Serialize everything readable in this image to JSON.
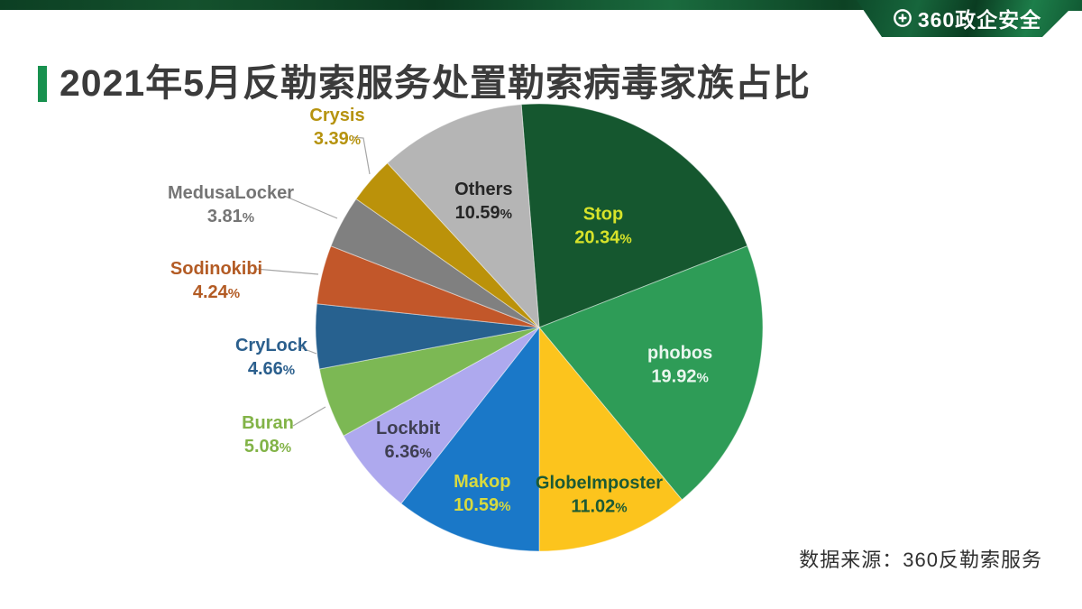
{
  "header": {
    "logo_text": "360政企安全",
    "title": "2021年5月反勒索服务处置勒索病毒家族占比"
  },
  "footer": {
    "source_note": "数据来源：360反勒索服务"
  },
  "colors": {
    "accent_green": "#18914f",
    "banner_green_dark": "#0a3c21",
    "banner_green_light": "#1d7e4a",
    "title_text": "#3b3b3b",
    "leader_line": "#a6a6a6"
  },
  "chart_data": {
    "type": "pie",
    "title": "2021年5月反勒索服务处置勒索病毒家族占比",
    "unit": "percent",
    "legend": "none",
    "start_angle_deg": -4.6,
    "clockwise": true,
    "slices": [
      {
        "name": "Stop",
        "value": 20.34,
        "label": "20.34%",
        "color": "#15572f",
        "label_color": "#d7e32a",
        "label_placement": "inside"
      },
      {
        "name": "phobos",
        "value": 19.92,
        "label": "19.92%",
        "color": "#2e9c57",
        "label_color": "#e9f6ee",
        "label_placement": "inside"
      },
      {
        "name": "GlobeImposter",
        "value": 11.02,
        "label": "11.02%",
        "color": "#fcc41d",
        "label_color": "#1c5a34",
        "label_placement": "inside"
      },
      {
        "name": "Makop",
        "value": 10.59,
        "label": "10.59%",
        "color": "#1a78c8",
        "label_color": "#d8da3f",
        "label_placement": "inside"
      },
      {
        "name": "Lockbit",
        "value": 6.36,
        "label": "6.36%",
        "color": "#aea9ee",
        "label_color": "#3f3f52",
        "label_placement": "inside"
      },
      {
        "name": "Buran",
        "value": 5.08,
        "label": "5.08%",
        "color": "#7cb854",
        "label_color": "#82b347",
        "label_placement": "outside"
      },
      {
        "name": "CryLock",
        "value": 4.66,
        "label": "4.66%",
        "color": "#27618f",
        "label_color": "#2b5f8d",
        "label_placement": "outside"
      },
      {
        "name": "Sodinokibi",
        "value": 4.24,
        "label": "4.24%",
        "color": "#c2572a",
        "label_color": "#b35b24",
        "label_placement": "outside"
      },
      {
        "name": "MedusaLocker",
        "value": 3.81,
        "label": "3.81%",
        "color": "#808080",
        "label_color": "#757575",
        "label_placement": "outside"
      },
      {
        "name": "Crysis",
        "value": 3.39,
        "label": "3.39%",
        "color": "#bb920a",
        "label_color": "#b6930f",
        "label_placement": "outside"
      },
      {
        "name": "Others",
        "value": 10.59,
        "label": "10.59%",
        "color": "#b5b5b5",
        "label_color": "#262626",
        "label_placement": "inside"
      }
    ]
  }
}
